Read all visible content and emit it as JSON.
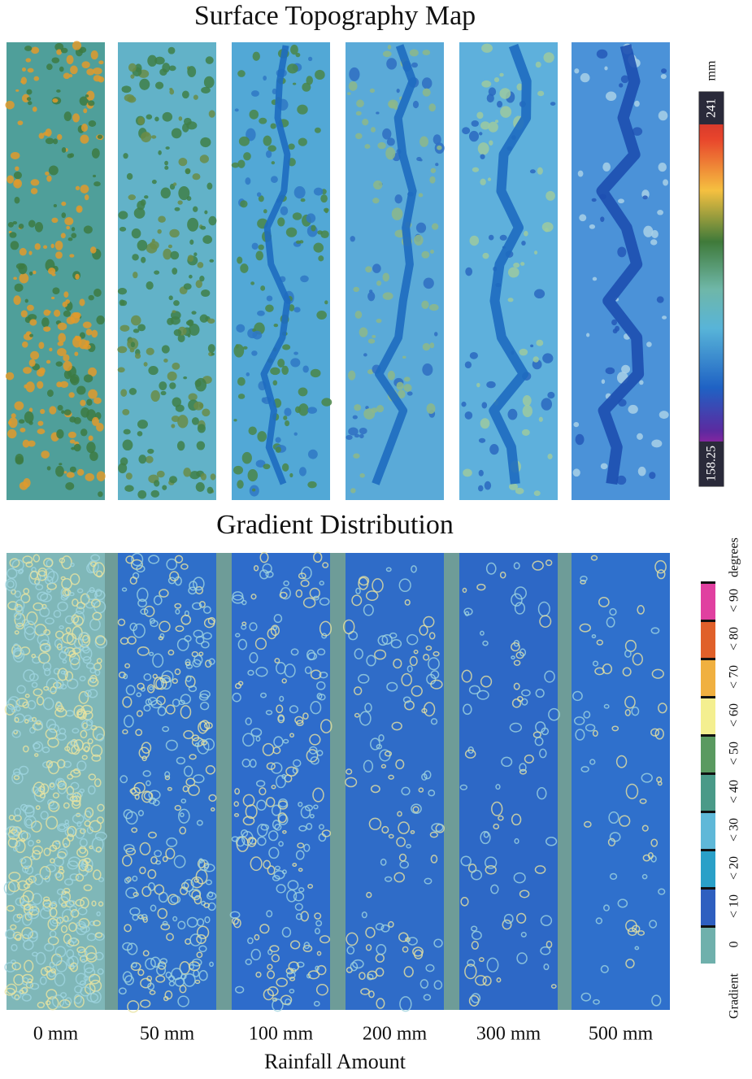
{
  "top": {
    "title": "Surface Topography Map",
    "scale_unit": "mm",
    "scale_max": "241",
    "scale_min": "158.25"
  },
  "bottom": {
    "title": "Gradient Distribution",
    "legend_title": "Gradient",
    "legend_unit": "degrees",
    "legend_labels": [
      "0",
      "< 10",
      "< 20",
      "< 30",
      "< 40",
      "< 50",
      "< 60",
      "< 70",
      "< 80",
      "< 90"
    ]
  },
  "columns": [
    "0 mm",
    "50 mm",
    "100 mm",
    "200 mm",
    "300 mm",
    "500 mm"
  ],
  "x_axis_title": "Rainfall Amount"
}
